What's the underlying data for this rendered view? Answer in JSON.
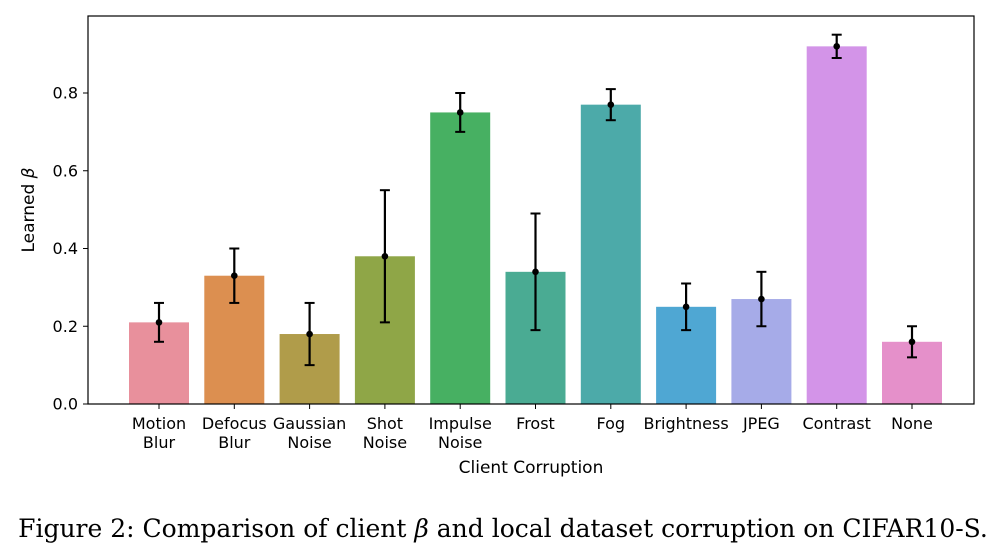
{
  "chart_data": {
    "type": "bar",
    "categories": [
      [
        "Motion",
        "Blur"
      ],
      [
        "Defocus",
        "Blur"
      ],
      [
        "Gaussian",
        "Noise"
      ],
      [
        "Shot",
        "Noise"
      ],
      [
        "Impulse",
        "Noise"
      ],
      [
        "Frost"
      ],
      [
        "Fog"
      ],
      [
        "Brightness"
      ],
      [
        "JPEG"
      ],
      [
        "Contrast"
      ],
      [
        "None"
      ]
    ],
    "values": [
      0.21,
      0.33,
      0.18,
      0.38,
      0.75,
      0.34,
      0.77,
      0.25,
      0.27,
      0.92,
      0.16
    ],
    "error_low": [
      0.16,
      0.26,
      0.1,
      0.21,
      0.7,
      0.19,
      0.73,
      0.19,
      0.2,
      0.89,
      0.12
    ],
    "error_high": [
      0.26,
      0.4,
      0.26,
      0.55,
      0.8,
      0.49,
      0.81,
      0.31,
      0.34,
      0.95,
      0.2
    ],
    "colors": [
      "#e8909c",
      "#dc8f50",
      "#b09c4a",
      "#8fa647",
      "#47b062",
      "#4aab93",
      "#4caaa9",
      "#4fa7d3",
      "#a6abe8",
      "#d394e8",
      "#e590ca"
    ],
    "xlabel": "Client Corruption",
    "ylabel_prefix": "Learned ",
    "ylabel_symbol": "β",
    "ylim": [
      0,
      1.0
    ],
    "yticks": [
      0.0,
      0.2,
      0.4,
      0.6,
      0.8
    ],
    "ytick_labels": [
      "0.0",
      "0.2",
      "0.4",
      "0.6",
      "0.8"
    ]
  },
  "caption": {
    "prefix": "Figure 2: ",
    "text_before": "Comparison of client ",
    "symbol": "β",
    "text_after": " and local dataset corruption on CIFAR10-S."
  }
}
